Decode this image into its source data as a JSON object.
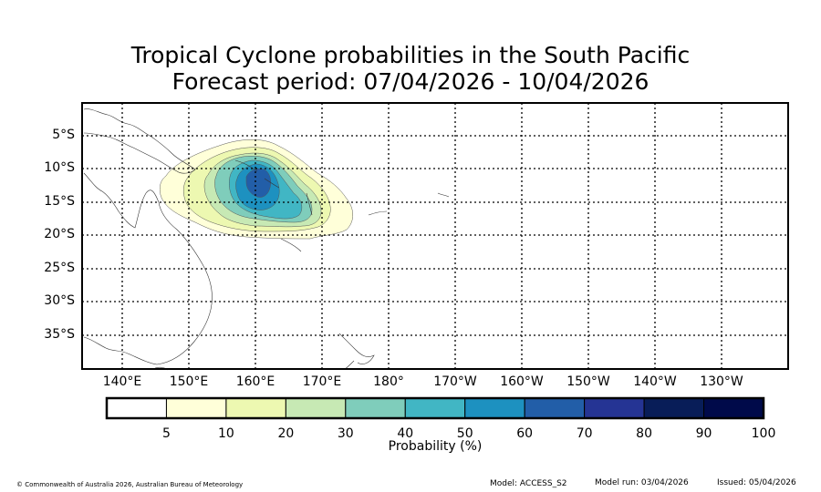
{
  "title_line1": "Tropical Cyclone probabilities in the South Pacific",
  "title_line2": "Forecast period: 07/04/2026 - 10/04/2026",
  "latitude_labels": [
    "5°S",
    "10°S",
    "15°S",
    "20°S",
    "25°S",
    "30°S",
    "35°S"
  ],
  "longitude_labels": [
    "140°E",
    "150°E",
    "160°E",
    "170°E",
    "180°",
    "170°W",
    "160°W",
    "150°W",
    "140°W",
    "130°W"
  ],
  "colorbar": {
    "label": "Probability (%)",
    "ticks": [
      "5",
      "10",
      "20",
      "30",
      "40",
      "50",
      "60",
      "70",
      "80",
      "90",
      "100"
    ],
    "colors": [
      "#ffffff",
      "#ffffd9",
      "#edf8b1",
      "#c7e9b4",
      "#7fcdbb",
      "#41b6c4",
      "#1d91c0",
      "#225ea8",
      "#253494",
      "#081d58",
      "#000a4a"
    ]
  },
  "probability_colors": {
    "p10": "#ffffd9",
    "p20": "#edf8b1",
    "p30": "#c7e9b4",
    "p40": "#7fcdbb",
    "p50": "#41b6c4",
    "p60": "#1d91c0",
    "p70": "#225ea8"
  },
  "footer": {
    "copyright": "© Commonwealth of Australia 2026, Australian Bureau of Meteorology",
    "model": "Model: ACCESS_S2",
    "model_run": "Model run: 03/04/2026",
    "issued": "Issued: 05/04/2026"
  }
}
